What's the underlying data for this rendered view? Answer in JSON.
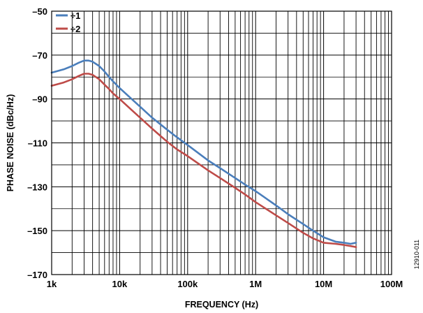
{
  "chart_data": {
    "type": "line",
    "title": "",
    "xlabel": "FREQUENCY (Hz)",
    "ylabel": "PHASE NOISE (dBc/Hz)",
    "xscale": "log",
    "xlim": [
      1000,
      100000000
    ],
    "ylim": [
      -170,
      -50
    ],
    "xticks": [
      1000,
      10000,
      100000,
      1000000,
      10000000,
      100000000
    ],
    "xtick_labels": [
      "1k",
      "10k",
      "100k",
      "1M",
      "10M",
      "100M"
    ],
    "yticks": [
      -50,
      -70,
      -90,
      -110,
      -130,
      -150,
      -170
    ],
    "ytick_labels": [
      "–50",
      "–70",
      "–90",
      "–110",
      "–130",
      "–150",
      "–170"
    ],
    "grid": true,
    "legend_position": "top-left",
    "series": [
      {
        "name": "÷1",
        "color": "#4a7ebb",
        "x": [
          1000,
          1500,
          2000,
          2500,
          3000,
          3500,
          4000,
          5000,
          6000,
          7000,
          8000,
          10000,
          15000,
          20000,
          30000,
          50000,
          70000,
          100000,
          200000,
          300000,
          500000,
          700000,
          1000000,
          2000000,
          3000000,
          5000000,
          7000000,
          10000000,
          15000000,
          20000000,
          25000000,
          30000000
        ],
        "y": [
          -78,
          -76.5,
          -75,
          -73.5,
          -72.5,
          -72.5,
          -73,
          -75,
          -77.5,
          -80,
          -82,
          -85,
          -90,
          -93.5,
          -98.5,
          -104,
          -107.5,
          -111,
          -118,
          -121.5,
          -126,
          -129,
          -132,
          -138.5,
          -142.5,
          -147,
          -150,
          -153,
          -155,
          -155.5,
          -156,
          -155.5
        ]
      },
      {
        "name": "÷2",
        "color": "#be4b48",
        "x": [
          1000,
          1500,
          2000,
          2500,
          3000,
          3500,
          4000,
          5000,
          6000,
          7000,
          8000,
          10000,
          15000,
          20000,
          30000,
          50000,
          70000,
          100000,
          200000,
          300000,
          500000,
          700000,
          1000000,
          2000000,
          3000000,
          5000000,
          7000000,
          10000000,
          15000000,
          20000000,
          25000000,
          30000000
        ],
        "y": [
          -84,
          -82.5,
          -81,
          -79.5,
          -78.5,
          -78.5,
          -79,
          -81,
          -83.5,
          -85.5,
          -87.5,
          -90,
          -95,
          -98.5,
          -103.5,
          -109.5,
          -113,
          -116,
          -122.5,
          -126,
          -130.5,
          -133.5,
          -137,
          -143,
          -146.5,
          -151,
          -153.5,
          -155.5,
          -156,
          -156.5,
          -157,
          -157.5
        ]
      }
    ],
    "figure_id": "12910-011"
  }
}
